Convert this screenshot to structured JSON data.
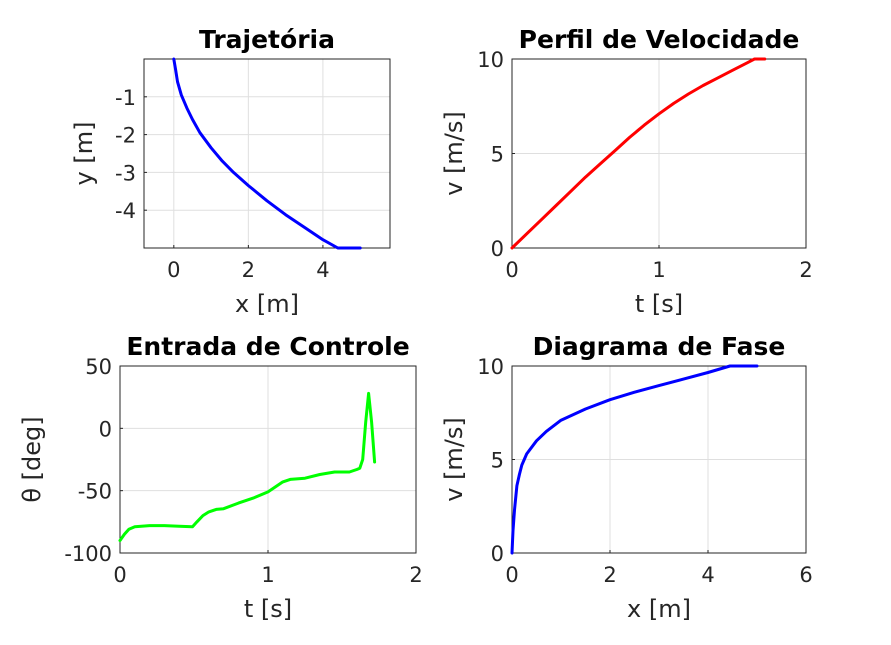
{
  "chart_data": [
    {
      "type": "line",
      "title": "Trajetória",
      "xlabel": "x [m]",
      "ylabel": "y [m]",
      "xlim": [
        -0.8,
        5.8
      ],
      "ylim": [
        -5,
        0
      ],
      "xticks": [
        {
          "v": 0,
          "label": "0"
        },
        {
          "v": 2,
          "label": "2"
        },
        {
          "v": 4,
          "label": "4"
        }
      ],
      "yticks": [
        {
          "v": -1,
          "label": "-1"
        },
        {
          "v": -2,
          "label": "-2"
        },
        {
          "v": -3,
          "label": "-3"
        },
        {
          "v": -4,
          "label": "-4"
        }
      ],
      "grid": true,
      "series": [
        {
          "color": "#0000ff",
          "x": [
            0,
            0.05,
            0.1,
            0.2,
            0.35,
            0.5,
            0.7,
            1.0,
            1.3,
            1.6,
            2.0,
            2.5,
            3.0,
            3.5,
            4.0,
            4.4,
            4.45,
            5.0
          ],
          "y": [
            0,
            -0.3,
            -0.6,
            -0.95,
            -1.3,
            -1.6,
            -1.95,
            -2.35,
            -2.7,
            -3.0,
            -3.35,
            -3.75,
            -4.12,
            -4.45,
            -4.78,
            -5.0,
            -5.0,
            -5.0
          ]
        }
      ]
    },
    {
      "type": "line",
      "title": "Perfil de Velocidade",
      "xlabel": "t [s]",
      "ylabel": "v [m/s]",
      "xlim": [
        0,
        2
      ],
      "ylim": [
        0,
        10
      ],
      "xticks": [
        {
          "v": 0,
          "label": "0"
        },
        {
          "v": 1,
          "label": "1"
        },
        {
          "v": 2,
          "label": "2"
        }
      ],
      "yticks": [
        {
          "v": 0,
          "label": "0"
        },
        {
          "v": 5,
          "label": "5"
        },
        {
          "v": 10,
          "label": "10"
        }
      ],
      "grid": true,
      "series": [
        {
          "color": "#ff0000",
          "x": [
            0,
            0.1,
            0.2,
            0.3,
            0.4,
            0.5,
            0.6,
            0.7,
            0.8,
            0.9,
            1.0,
            1.1,
            1.2,
            1.3,
            1.4,
            1.5,
            1.6,
            1.65,
            1.72
          ],
          "y": [
            0,
            0.75,
            1.5,
            2.25,
            3.0,
            3.75,
            4.45,
            5.15,
            5.85,
            6.5,
            7.1,
            7.65,
            8.15,
            8.6,
            9.0,
            9.4,
            9.8,
            10.0,
            10.0
          ]
        }
      ]
    },
    {
      "type": "line",
      "title": "Entrada de Controle",
      "xlabel": "t [s]",
      "ylabel": "θ [deg]",
      "xlim": [
        0,
        2
      ],
      "ylim": [
        -100,
        50
      ],
      "xticks": [
        {
          "v": 0,
          "label": "0"
        },
        {
          "v": 1,
          "label": "1"
        },
        {
          "v": 2,
          "label": "2"
        }
      ],
      "yticks": [
        {
          "v": -100,
          "label": "-100"
        },
        {
          "v": -50,
          "label": "-50"
        },
        {
          "v": 0,
          "label": "0"
        },
        {
          "v": 50,
          "label": "50"
        }
      ],
      "grid": true,
      "series": [
        {
          "color": "#00ff00",
          "x": [
            0,
            0.03,
            0.06,
            0.1,
            0.2,
            0.3,
            0.4,
            0.49,
            0.52,
            0.56,
            0.6,
            0.65,
            0.7,
            0.8,
            0.9,
            1.0,
            1.05,
            1.1,
            1.15,
            1.25,
            1.35,
            1.45,
            1.55,
            1.6,
            1.62,
            1.64,
            1.66,
            1.68,
            1.7,
            1.72
          ],
          "y": [
            -90,
            -85,
            -81,
            -79,
            -78,
            -78,
            -78.5,
            -79,
            -75,
            -70,
            -67,
            -65,
            -64.5,
            -60,
            -56,
            -51,
            -47,
            -43,
            -41,
            -40,
            -37,
            -35,
            -35,
            -33,
            -32,
            -25,
            5,
            28,
            5,
            -27
          ]
        }
      ]
    },
    {
      "type": "line",
      "title": "Diagrama de Fase",
      "xlabel": "x [m]",
      "ylabel": "v [m/s]",
      "xlim": [
        0,
        6
      ],
      "ylim": [
        0,
        10
      ],
      "xticks": [
        {
          "v": 0,
          "label": "0"
        },
        {
          "v": 2,
          "label": "2"
        },
        {
          "v": 4,
          "label": "4"
        },
        {
          "v": 6,
          "label": "6"
        }
      ],
      "yticks": [
        {
          "v": 0,
          "label": "0"
        },
        {
          "v": 5,
          "label": "5"
        },
        {
          "v": 10,
          "label": "10"
        }
      ],
      "grid": true,
      "series": [
        {
          "color": "#0000ff",
          "x": [
            0,
            0.02,
            0.05,
            0.1,
            0.15,
            0.2,
            0.3,
            0.5,
            0.7,
            1.0,
            1.5,
            2.0,
            2.5,
            3.0,
            3.5,
            4.0,
            4.45,
            5.0
          ],
          "y": [
            0,
            1.2,
            2.3,
            3.6,
            4.2,
            4.7,
            5.3,
            6.0,
            6.5,
            7.1,
            7.7,
            8.2,
            8.6,
            8.95,
            9.3,
            9.65,
            10.0,
            10.0
          ]
        }
      ]
    }
  ]
}
